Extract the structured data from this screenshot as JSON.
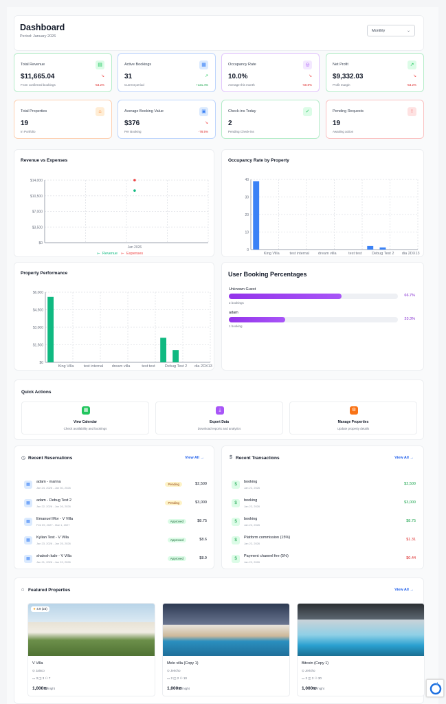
{
  "header": {
    "title": "Dashboard",
    "period": "Period: January 2026",
    "select": "Monthly"
  },
  "stats": [
    {
      "label": "Total Revenue",
      "value": "$11,665.04",
      "sub": "From confirmed bookings",
      "pct": "-53.2%",
      "color": "#22c55e",
      "bg": "#dcfce7",
      "icon": "money-icon",
      "glyph": "▤",
      "trend": "down"
    },
    {
      "label": "Active Bookings",
      "value": "31",
      "sub": "Current period",
      "pct": "+121.4%",
      "color": "#3b82f6",
      "bg": "#dbeafe",
      "icon": "calendar-icon",
      "glyph": "▦",
      "trend": "up"
    },
    {
      "label": "Occupancy Rate",
      "value": "10.0%",
      "sub": "Average this month",
      "pct": "-50.8%",
      "color": "#a855f7",
      "bg": "#f3e8ff",
      "icon": "target-icon",
      "glyph": "◎",
      "trend": "down"
    },
    {
      "label": "Net Profit",
      "value": "$9,332.03",
      "sub": "Profit margin",
      "pct": "-53.2%",
      "color": "#22c55e",
      "bg": "#dcfce7",
      "icon": "trending-up-icon",
      "glyph": "↗",
      "trend": "down"
    },
    {
      "label": "Total Properties",
      "value": "19",
      "sub": "In Portfolio",
      "pct": "",
      "color": "#f97316",
      "bg": "#ffedd5",
      "icon": "home-icon",
      "glyph": "⌂",
      "trend": ""
    },
    {
      "label": "Average Booking Value",
      "value": "$376",
      "sub": "Per Booking",
      "pct": "-78.5%",
      "color": "#3b82f6",
      "bg": "#dbeafe",
      "icon": "users-icon",
      "glyph": "▣",
      "trend": "down"
    },
    {
      "label": "Check-ins Today",
      "value": "2",
      "sub": "Pending Check-ins",
      "pct": "",
      "color": "#22c55e",
      "bg": "#dcfce7",
      "icon": "check-circle-icon",
      "glyph": "✓",
      "trend": ""
    },
    {
      "label": "Pending Requests",
      "value": "19",
      "sub": "Awaiting action",
      "pct": "",
      "color": "#ef4444",
      "bg": "#fee2e2",
      "icon": "alert-circle-icon",
      "glyph": "!",
      "trend": ""
    }
  ],
  "chart_data": [
    {
      "type": "scatter",
      "title": "Revenue vs Expenses",
      "categories": [
        "Jan 2026"
      ],
      "yticks": [
        "$14,000",
        "$10,500",
        "$7,000",
        "$3,500",
        "$0"
      ],
      "ylim": [
        0,
        14000
      ],
      "series": [
        {
          "name": "Revenue",
          "values": [
            11665
          ],
          "color": "#10b981"
        },
        {
          "name": "Expenses",
          "values": [
            14000
          ],
          "color": "#ef4444"
        }
      ],
      "legend": "bottom",
      "grid": true
    },
    {
      "type": "bar",
      "title": "Occupancy Rate by Property",
      "categories": [
        "King Villa",
        "test internal",
        "dream villa",
        "test test",
        "Debug Test 2",
        "dia 2DX13"
      ],
      "yticks": [
        "40",
        "30",
        "20",
        "10",
        "0"
      ],
      "ylim": [
        0,
        40
      ],
      "series": [
        {
          "name": "",
          "values": [
            39,
            0,
            0,
            0,
            2,
            1.2
          ],
          "color": "#3b82f6"
        }
      ],
      "grid": true
    },
    {
      "type": "bar",
      "title": "Property Performance",
      "categories": [
        "King Villa",
        "test internal",
        "dream villa",
        "test test",
        "Debug Test 2",
        "dia 2DX13"
      ],
      "yticks": [
        "$6,000",
        "$4,500",
        "$3,000",
        "$1,500",
        "$0"
      ],
      "ylim": [
        0,
        6000
      ],
      "series": [
        {
          "name": "",
          "values": [
            5600,
            0,
            0,
            0,
            2100,
            1050
          ],
          "color": "#10b981"
        }
      ],
      "grid": true
    }
  ],
  "user_booking": {
    "title": "User Booking Percentages",
    "items": [
      {
        "name": "Unknown Guest",
        "sub": "2 bookings",
        "pct": "66.7%",
        "fill": 0.667
      },
      {
        "name": "adam",
        "sub": "1 booking",
        "pct": "33.3%",
        "fill": 0.333
      }
    ]
  },
  "quick_actions": {
    "title": "Quick Actions",
    "items": [
      {
        "title": "View Calendar",
        "sub": "Check availability and bookings",
        "color": "#22c55e",
        "icon": "calendar-icon",
        "glyph": "▦"
      },
      {
        "title": "Export Data",
        "sub": "Download reports and analytics",
        "color": "#a855f7",
        "icon": "download-icon",
        "glyph": "⤓"
      },
      {
        "title": "Manage Properties",
        "sub": "Update property details",
        "color": "#f97316",
        "icon": "settings-icon",
        "glyph": "⚙"
      }
    ]
  },
  "reservations": {
    "title": "Recent Reservations",
    "view_all": "View All",
    "icon_glyph": "◷",
    "items": [
      {
        "title": "adam - marina",
        "date": "Jan 24, 2026 - Jan 30, 2026",
        "badge": "Pending",
        "amount": "$2,500"
      },
      {
        "title": "adam - Debug Test 2",
        "date": "Jan 22, 2026 - Jan 26, 2026",
        "badge": "Pending",
        "amount": "$3,000"
      },
      {
        "title": "Emanuel Mor - V Villa",
        "date": "Feb 09, 2027 - Mar 1, 2027",
        "badge": "Approved",
        "amount": "$8.75"
      },
      {
        "title": "Kylian Test - V Villa",
        "date": "Jan 23, 2026 - Jan 25, 2026",
        "badge": "Approved",
        "amount": "$8.6"
      },
      {
        "title": "shalesh kale - V Villa",
        "date": "Jan 21, 2026 - Jan 22, 2026",
        "badge": "Approved",
        "amount": "$8.9"
      }
    ]
  },
  "transactions": {
    "title": "Recent Transactions",
    "view_all": "View All",
    "icon_glyph": "$",
    "items": [
      {
        "title": "booking",
        "date": "Jan 22, 2026",
        "amount": "$2,500",
        "color": "#16a34a"
      },
      {
        "title": "booking",
        "date": "Jan 22, 2026",
        "amount": "$3,000",
        "color": "#16a34a"
      },
      {
        "title": "booking",
        "date": "Jan 22, 2026",
        "amount": "$8.75",
        "color": "#16a34a"
      },
      {
        "title": "Platform commission (15%)",
        "date": "Jan 22, 2026",
        "amount": "$1.31",
        "color": "#dc2626"
      },
      {
        "title": "Payment channel fee (5%)",
        "date": "Jan 22, 2026",
        "amount": "$0.44",
        "color": "#dc2626"
      }
    ]
  },
  "featured": {
    "title": "Featured Properties",
    "view_all": "View All",
    "items": [
      {
        "name": "V Villa",
        "loc": "Jaisco",
        "beds": "3",
        "baths": "3",
        "guests": "7",
        "price": "1,000₪",
        "per": "/night",
        "rating": "4.9 (23)"
      },
      {
        "name": "Melo villa (Copy 1)",
        "loc": "Jericho",
        "beds": "2",
        "baths": "2",
        "guests": "10",
        "price": "1,000₪",
        "per": "/night",
        "rating": ""
      },
      {
        "name": "Bitcoin (Copy 1)",
        "loc": "Jericho",
        "beds": "3",
        "baths": "3",
        "guests": "30",
        "price": "1,000₪",
        "per": "/night",
        "rating": ""
      }
    ]
  }
}
